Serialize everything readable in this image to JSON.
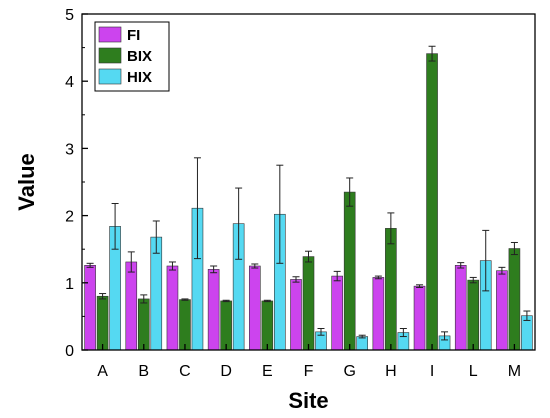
{
  "chart_data": {
    "type": "bar",
    "xlabel": "Site",
    "ylabel": "Value",
    "ylim": [
      0,
      5
    ],
    "yticks": [
      0,
      1,
      2,
      3,
      4,
      5
    ],
    "categories": [
      "A",
      "B",
      "C",
      "D",
      "E",
      "F",
      "G",
      "H",
      "I",
      "L",
      "M"
    ],
    "legend_position": "top-left",
    "grid": false,
    "series": [
      {
        "name": "FI",
        "color": "#cc44ee",
        "values": [
          1.26,
          1.31,
          1.25,
          1.2,
          1.25,
          1.05,
          1.1,
          1.08,
          0.95,
          1.26,
          1.18
        ],
        "errors": [
          0.03,
          0.15,
          0.06,
          0.05,
          0.03,
          0.04,
          0.07,
          0.02,
          0.02,
          0.04,
          0.05
        ]
      },
      {
        "name": "BIX",
        "color": "#2e7d1e",
        "values": [
          0.8,
          0.76,
          0.75,
          0.73,
          0.73,
          1.39,
          2.35,
          1.81,
          4.41,
          1.04,
          1.51
        ],
        "errors": [
          0.04,
          0.06,
          0.01,
          0.01,
          0.01,
          0.08,
          0.21,
          0.23,
          0.11,
          0.04,
          0.09
        ]
      },
      {
        "name": "HIX",
        "color": "#55d9f2",
        "values": [
          1.84,
          1.68,
          2.11,
          1.88,
          2.02,
          0.27,
          0.2,
          0.26,
          0.21,
          1.33,
          0.51
        ],
        "errors": [
          0.34,
          0.24,
          0.75,
          0.53,
          0.73,
          0.05,
          0.02,
          0.06,
          0.06,
          0.45,
          0.07
        ]
      }
    ]
  }
}
